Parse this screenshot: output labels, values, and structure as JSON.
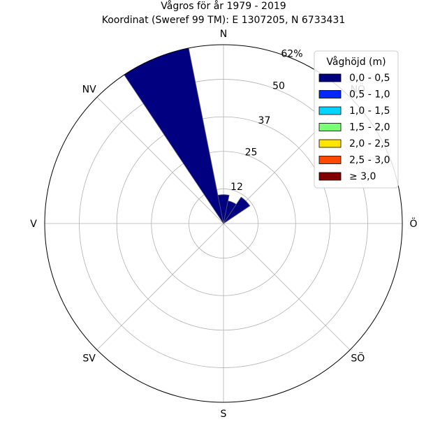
{
  "chart_data": {
    "type": "windrose",
    "title": "Vågros för år 1979 - 2019",
    "subtitle": "Koordinat (Sweref 99 TM): E 1307205, N 6733431",
    "directions": [
      "N",
      "NÖ",
      "Ö",
      "SÖ",
      "S",
      "SV",
      "V",
      "NV"
    ],
    "ring_values": [
      12,
      25,
      37,
      50
    ],
    "max_label": "62%",
    "rmax": 62,
    "grid": true,
    "legend": {
      "title": "Våghöjd (m)",
      "placement": "top-right",
      "entries": [
        {
          "label": "0,0 - 0,5",
          "color": "#000080"
        },
        {
          "label": "0,5 - 1,0",
          "color": "#0028ff"
        },
        {
          "label": "1,0 - 1,5",
          "color": "#00d4ff"
        },
        {
          "label": "1,5 - 2,0",
          "color": "#7dff7a"
        },
        {
          "label": "2,0 - 2,5",
          "color": "#ffe600"
        },
        {
          "label": "2,5 - 3,0",
          "color": "#ff4800"
        },
        {
          "label": "≥ 3,0",
          "color": "#800000"
        }
      ]
    },
    "sector_width_deg": 22.5,
    "sectors": [
      {
        "direction_deg": 337.5,
        "bin": "0,0 - 0,5",
        "value": 62
      },
      {
        "direction_deg": 0,
        "bin": "0,0 - 0,5",
        "value": 10
      },
      {
        "direction_deg": 22.5,
        "bin": "0,0 - 0,5",
        "value": 8
      },
      {
        "direction_deg": 45,
        "bin": "0,0 - 0,5",
        "value": 11
      }
    ]
  }
}
